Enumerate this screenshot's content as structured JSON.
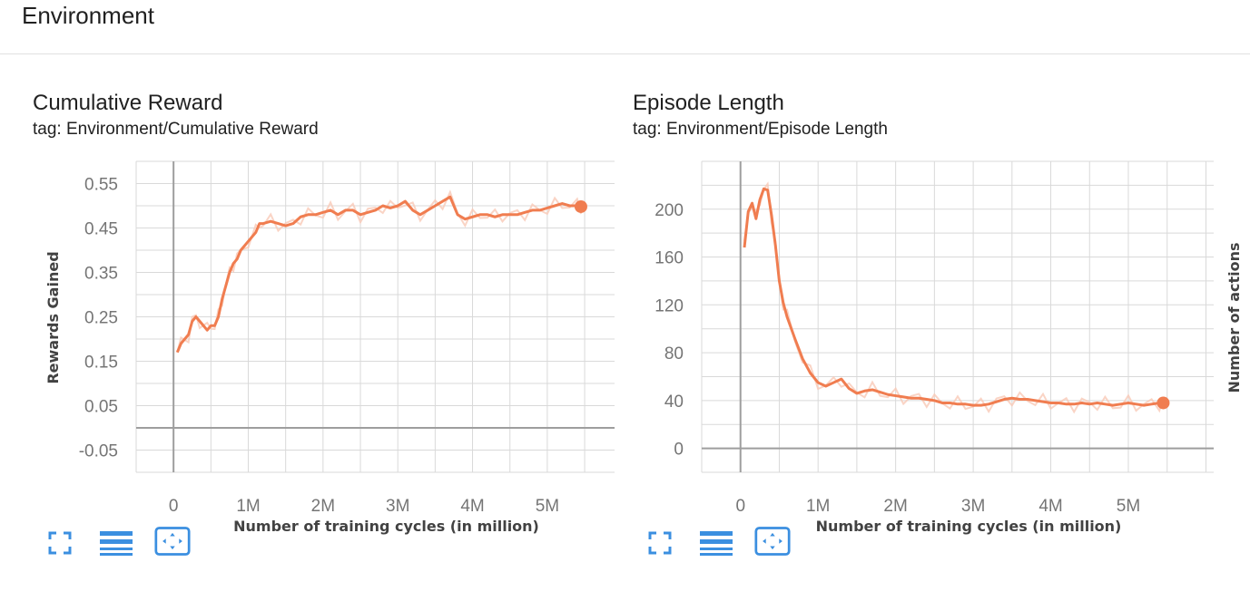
{
  "section": {
    "title": "Environment"
  },
  "colors": {
    "line": "#f07d50",
    "smooth_raw": "#f9c9b6",
    "grid": "#d9d9d9",
    "axis": "#9e9e9e",
    "icon": "#3b8fe0"
  },
  "toolbar_icons": [
    "fullscreen-icon",
    "list-icon",
    "fit-domain-icon"
  ],
  "cards": [
    {
      "title": "Cumulative Reward",
      "tag": "tag: Environment/Cumulative Reward"
    },
    {
      "title": "Episode Length",
      "tag": "tag: Environment/Episode Length"
    }
  ],
  "chart_data": [
    {
      "type": "line",
      "title": "Cumulative Reward",
      "xlabel": "Number of training cycles (in million)",
      "ylabel": "Rewards Gained",
      "xlim": [
        -0.5,
        5.9
      ],
      "ylim": [
        -0.1,
        0.6
      ],
      "x_ticks": [
        "0",
        "1M",
        "2M",
        "3M",
        "4M",
        "5M"
      ],
      "y_ticks": [
        "0.55",
        "0.45",
        "0.35",
        "0.25",
        "0.15",
        "0.05",
        "-0.05"
      ],
      "y_tick_values": [
        0.55,
        0.45,
        0.35,
        0.25,
        0.15,
        0.05,
        -0.05
      ],
      "grid": true,
      "series": [
        {
          "x": [
            0.05,
            0.1,
            0.2,
            0.25,
            0.3,
            0.35,
            0.45,
            0.5,
            0.55,
            0.6,
            0.65,
            0.7,
            0.75,
            0.8,
            0.85,
            0.9,
            1.0,
            1.1,
            1.15,
            1.2,
            1.3,
            1.4,
            1.5,
            1.6,
            1.7,
            1.8,
            1.9,
            2.0,
            2.1,
            2.2,
            2.3,
            2.4,
            2.5,
            2.6,
            2.7,
            2.8,
            2.9,
            3.0,
            3.1,
            3.2,
            3.3,
            3.4,
            3.5,
            3.6,
            3.7,
            3.8,
            3.9,
            4.0,
            4.1,
            4.2,
            4.3,
            4.4,
            4.5,
            4.6,
            4.7,
            4.8,
            4.9,
            5.0,
            5.1,
            5.2,
            5.3,
            5.4,
            5.45
          ],
          "y": [
            0.17,
            0.19,
            0.21,
            0.24,
            0.25,
            0.24,
            0.22,
            0.23,
            0.23,
            0.25,
            0.29,
            0.32,
            0.35,
            0.37,
            0.38,
            0.4,
            0.42,
            0.44,
            0.46,
            0.46,
            0.465,
            0.46,
            0.455,
            0.46,
            0.475,
            0.48,
            0.48,
            0.485,
            0.49,
            0.48,
            0.49,
            0.49,
            0.48,
            0.485,
            0.49,
            0.5,
            0.495,
            0.5,
            0.51,
            0.49,
            0.48,
            0.49,
            0.5,
            0.51,
            0.52,
            0.48,
            0.47,
            0.475,
            0.48,
            0.48,
            0.475,
            0.48,
            0.48,
            0.48,
            0.485,
            0.49,
            0.49,
            0.495,
            0.5,
            0.505,
            0.5,
            0.5,
            0.498
          ]
        }
      ]
    },
    {
      "type": "line",
      "title": "Episode Length",
      "xlabel": "Number of training cycles (in million)",
      "ylabel": "Number of actions",
      "xlim": [
        -0.5,
        6.1
      ],
      "ylim": [
        -20,
        240
      ],
      "x_ticks": [
        "0",
        "1M",
        "2M",
        "3M",
        "4M",
        "5M"
      ],
      "y_ticks": [
        "200",
        "160",
        "120",
        "80",
        "40",
        "0"
      ],
      "y_tick_values": [
        200,
        160,
        120,
        80,
        40,
        0
      ],
      "grid": true,
      "series": [
        {
          "x": [
            0.05,
            0.1,
            0.15,
            0.2,
            0.25,
            0.3,
            0.35,
            0.4,
            0.45,
            0.5,
            0.55,
            0.6,
            0.7,
            0.8,
            0.9,
            1.0,
            1.1,
            1.2,
            1.3,
            1.4,
            1.5,
            1.6,
            1.7,
            1.8,
            1.9,
            2.0,
            2.1,
            2.2,
            2.3,
            2.4,
            2.5,
            2.6,
            2.7,
            2.8,
            2.9,
            3.0,
            3.1,
            3.2,
            3.3,
            3.4,
            3.5,
            3.6,
            3.7,
            3.8,
            3.9,
            4.0,
            4.1,
            4.2,
            4.3,
            4.4,
            4.5,
            4.6,
            4.7,
            4.8,
            4.9,
            5.0,
            5.1,
            5.2,
            5.3,
            5.4,
            5.45
          ],
          "y": [
            168,
            198,
            205,
            192,
            208,
            217,
            216,
            195,
            170,
            140,
            122,
            110,
            92,
            75,
            63,
            55,
            52,
            55,
            58,
            50,
            46,
            48,
            49,
            47,
            45,
            44,
            43,
            42,
            42,
            41,
            40,
            38,
            38,
            37,
            37,
            36,
            36,
            37,
            39,
            41,
            42,
            41,
            41,
            40,
            39,
            38,
            38,
            37,
            37,
            38,
            37,
            38,
            37,
            36,
            37,
            38,
            37,
            36,
            37,
            38,
            38
          ]
        }
      ]
    }
  ]
}
